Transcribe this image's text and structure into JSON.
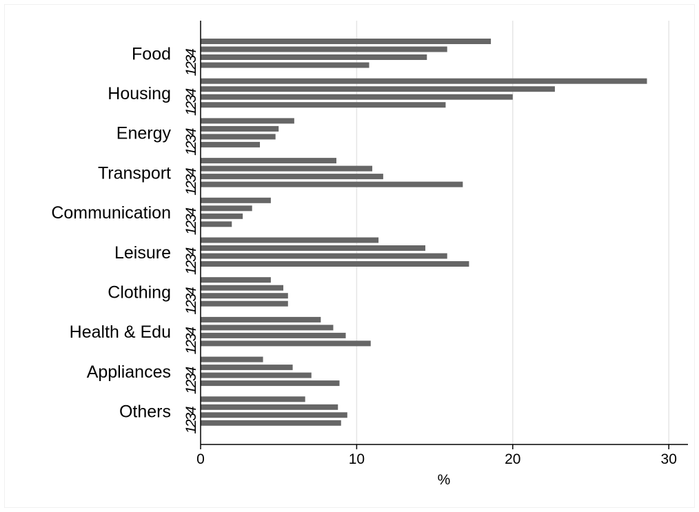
{
  "chart_data": {
    "type": "bar",
    "orientation": "horizontal",
    "categories": [
      "Food",
      "Housing",
      "Energy",
      "Transport",
      "Communication",
      "Leisure",
      "Clothing",
      "Health & Edu",
      "Appliances",
      "Others"
    ],
    "sub_labels": [
      "4",
      "3",
      "2",
      "1"
    ],
    "series": [
      {
        "values": [
          18.6,
          28.6,
          6.0,
          8.7,
          4.5,
          11.4,
          4.5,
          7.7,
          4.0,
          6.7
        ]
      },
      {
        "values": [
          15.8,
          22.7,
          5.0,
          11.0,
          3.3,
          14.4,
          5.3,
          8.5,
          5.9,
          8.8
        ]
      },
      {
        "values": [
          14.5,
          20.0,
          4.8,
          11.7,
          2.7,
          15.8,
          5.6,
          9.3,
          7.1,
          9.4
        ]
      },
      {
        "values": [
          10.8,
          15.7,
          3.8,
          16.8,
          2.0,
          17.2,
          5.6,
          10.9,
          8.9,
          9.0
        ]
      }
    ],
    "xlabel": "%",
    "xlim": [
      0,
      31
    ],
    "xticks": [
      0,
      10,
      20,
      30
    ],
    "grid": true,
    "bar_color": "#666666",
    "grid_color": "#e5e5e5"
  }
}
